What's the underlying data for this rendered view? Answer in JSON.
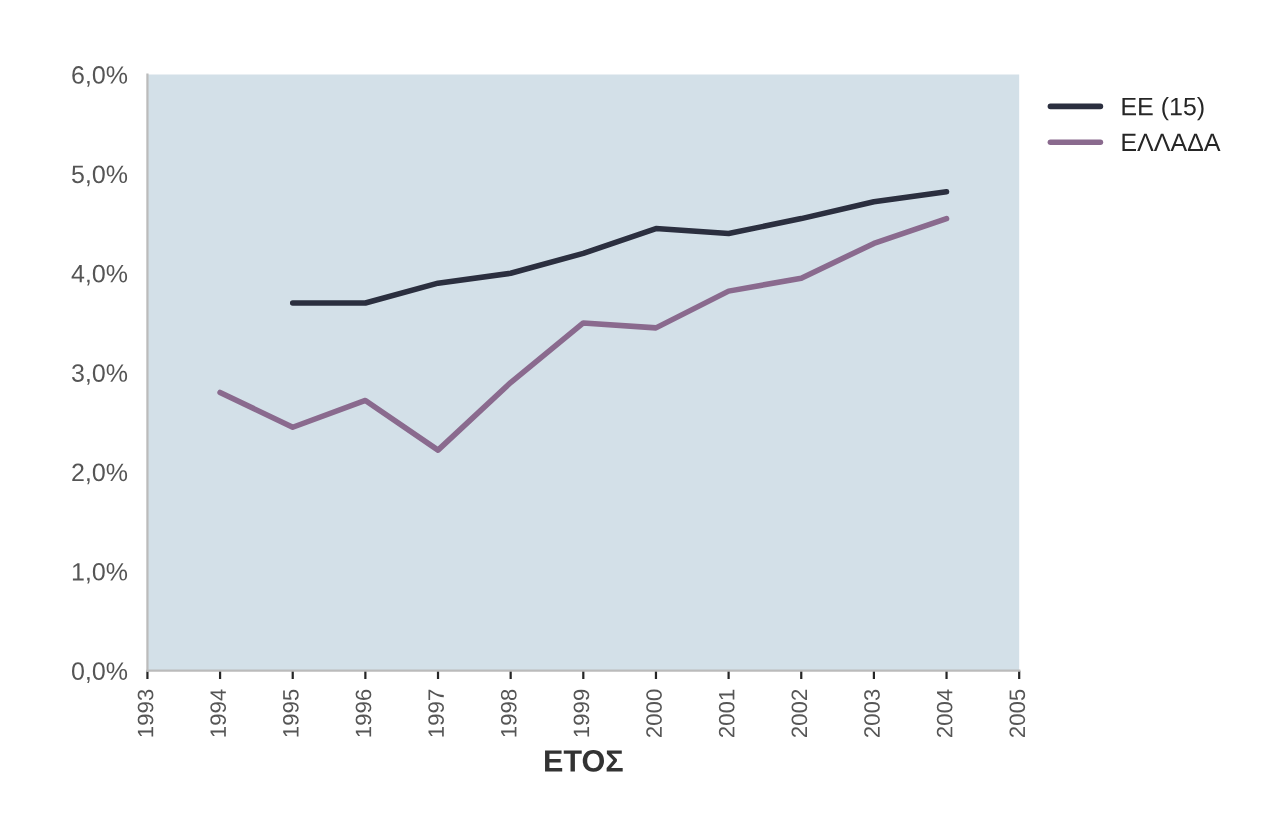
{
  "chart_data": {
    "type": "line",
    "xlabel": "ΕΤΟΣ",
    "x": [
      1994,
      1995,
      1996,
      1997,
      1998,
      1999,
      2000,
      2001,
      2002,
      2003,
      2004
    ],
    "series": [
      {
        "name": "ΕΕ (15)",
        "color": "#2b2f3f",
        "values": [
          null,
          3.7,
          3.7,
          3.9,
          4.0,
          4.2,
          4.45,
          4.4,
          4.55,
          4.72,
          4.82
        ]
      },
      {
        "name": "ΕΛΛΑΔΑ",
        "color": "#8a6a8e",
        "values": [
          2.8,
          2.45,
          2.72,
          2.22,
          2.9,
          3.5,
          3.45,
          3.82,
          3.95,
          4.3,
          4.55
        ]
      }
    ],
    "xlim": [
      1993,
      2005
    ],
    "xticks": [
      1993,
      1994,
      1995,
      1996,
      1997,
      1998,
      1999,
      2000,
      2001,
      2002,
      2003,
      2004,
      2005
    ],
    "ylim": [
      0,
      6
    ],
    "yticks": [
      {
        "value": 0,
        "label": "0,0%"
      },
      {
        "value": 1,
        "label": "1,0%"
      },
      {
        "value": 2,
        "label": "2,0%"
      },
      {
        "value": 3,
        "label": "3,0%"
      },
      {
        "value": 4,
        "label": "4,0%"
      },
      {
        "value": 5,
        "label": "5,0%"
      },
      {
        "value": 6,
        "label": "6,0%"
      }
    ],
    "grid": false,
    "legend": "top right",
    "marker": "none",
    "line_style": "solid"
  }
}
